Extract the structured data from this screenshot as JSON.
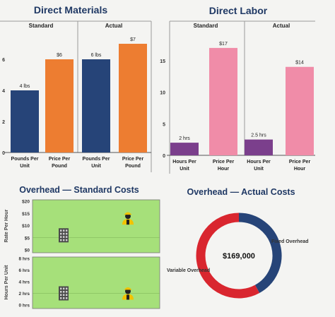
{
  "colors": {
    "navy": "#264478",
    "orange": "#ed7d31",
    "pink": "#f08ca8",
    "purple": "#7b3f8c",
    "green": "#a6e07a",
    "red": "#d9262f",
    "title": "#1f3864"
  },
  "chart_data": [
    {
      "type": "bar",
      "title": "Direct Materials",
      "groups": [
        "Standard",
        "Actual"
      ],
      "categories": [
        "Pounds Per Unit",
        "Price Per Pound",
        "Pounds Per Unit",
        "Price Per Pound"
      ],
      "values": [
        4,
        6,
        6,
        7
      ],
      "data_labels": [
        "4 lbs",
        "$6",
        "6 lbs",
        "$7"
      ],
      "bar_colors": [
        "navy",
        "orange",
        "navy",
        "orange"
      ],
      "ylim": [
        0,
        8
      ],
      "yticks": [
        "0",
        "2",
        "4",
        "6"
      ],
      "grid": false
    },
    {
      "type": "bar",
      "title": "Direct Labor",
      "groups": [
        "Standard",
        "Actual"
      ],
      "categories": [
        "Hours Per Unit",
        "Price Per Hour",
        "Hours Per Unit",
        "Price Per Hour"
      ],
      "values": [
        2,
        17,
        2.5,
        14
      ],
      "data_labels": [
        "2 hrs",
        "$17",
        "2.5 hrs",
        "$14"
      ],
      "bar_colors": [
        "purple",
        "pink",
        "purple",
        "pink"
      ],
      "ylim": [
        0,
        19
      ],
      "yticks": [
        "0",
        "5",
        "10",
        "15"
      ],
      "grid": false
    },
    {
      "type": "scatter",
      "title": "Overhead — Standard Costs",
      "panels": [
        {
          "ylabel": "Rate Per Hour",
          "ylim": [
            0,
            20
          ],
          "yticks": [
            "$0",
            "$5",
            "$10",
            "$15",
            "$20"
          ],
          "points": [
            {
              "series": "fixed",
              "icon": "building-icon",
              "y": 6
            },
            {
              "series": "variable",
              "icon": "worker-icon",
              "y": 13
            }
          ]
        },
        {
          "ylabel": "Hours Per Unit",
          "ylim": [
            0,
            8
          ],
          "yticks": [
            "0 hrs",
            "2 hrs",
            "4 hrs",
            "6 hrs",
            "8 hrs"
          ],
          "points": [
            {
              "series": "fixed",
              "icon": "building-icon",
              "y": 2
            },
            {
              "series": "variable",
              "icon": "worker-icon",
              "y": 2
            }
          ]
        }
      ]
    },
    {
      "type": "pie",
      "title": "Overhead — Actual Costs",
      "center_label": "$169,000",
      "slices": [
        {
          "label": "Fixed Overhead",
          "value": 0.42,
          "color": "navy"
        },
        {
          "label": "Variable Overhead",
          "value": 0.58,
          "color": "red"
        }
      ]
    }
  ]
}
